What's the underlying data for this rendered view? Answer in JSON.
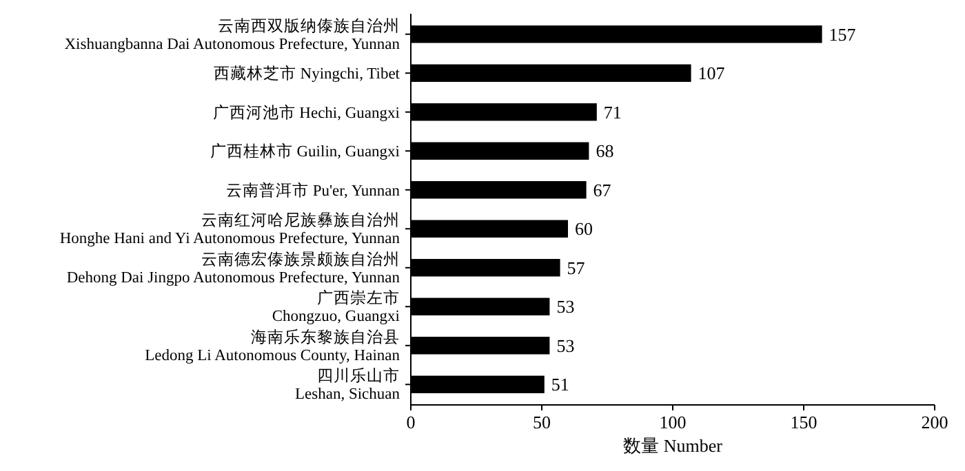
{
  "chart_data": {
    "type": "bar",
    "orientation": "horizontal",
    "xlabel": "数量 Number",
    "categories": [
      "云南西双版纳傣族自治州\nXishuangbanna Dai Autonomous Prefecture, Yunnan",
      "西藏林芝市 Nyingchi, Tibet",
      "广西河池市 Hechi, Guangxi",
      "广西桂林市 Guilin, Guangxi",
      "云南普洱市 Pu'er, Yunnan",
      "云南红河哈尼族彝族自治州\nHonghe Hani and Yi Autonomous Prefecture, Yunnan",
      "云南德宏傣族景颇族自治州\nDehong Dai Jingpo Autonomous Prefecture, Yunnan",
      "广西崇左市\nChongzuo, Guangxi",
      "海南乐东黎族自治县\nLedong Li Autonomous County, Hainan",
      "四川乐山市\nLeshan, Sichuan"
    ],
    "values": [
      157,
      107,
      71,
      68,
      67,
      60,
      57,
      53,
      53,
      51
    ],
    "color": "#000000",
    "xlim": [
      0,
      200
    ],
    "xticks": [
      0,
      50,
      100,
      150,
      200
    ],
    "data_labels": true
  }
}
